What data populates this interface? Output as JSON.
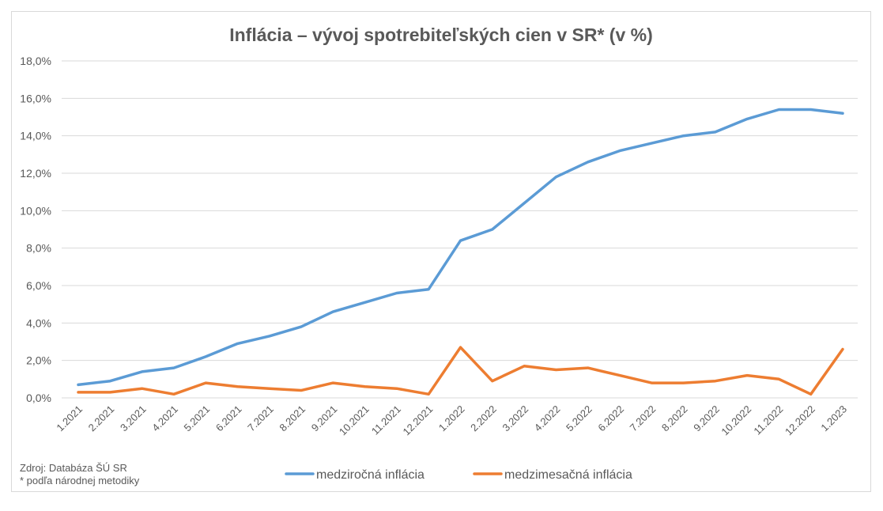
{
  "chart_data": {
    "type": "line",
    "title": "Inflácia –  vývoj spotrebiteľských cien v SR* (v %)",
    "categories": [
      "1.2021",
      "2.2021",
      "3.2021",
      "4.2021",
      "5.2021",
      "6.2021",
      "7.2021",
      "8.2021",
      "9.2021",
      "10.2021",
      "11.2021",
      "12.2021",
      "1.2022",
      "2.2022",
      "3.2022",
      "4.2022",
      "5.2022",
      "6.2022",
      "7.2022",
      "8.2022",
      "9.2022",
      "10.2022",
      "11.2022",
      "12.2022",
      "1.2023"
    ],
    "series": [
      {
        "name": "medziročná inflácia",
        "color": "#5b9bd5",
        "values": [
          0.7,
          0.9,
          1.4,
          1.6,
          2.2,
          2.9,
          3.3,
          3.8,
          4.6,
          5.1,
          5.6,
          5.8,
          8.4,
          9.0,
          10.4,
          11.8,
          12.6,
          13.2,
          13.6,
          14.0,
          14.2,
          14.9,
          15.4,
          15.4,
          15.2
        ]
      },
      {
        "name": "medzimesačná inflácia",
        "color": "#ed7d31",
        "values": [
          0.3,
          0.3,
          0.5,
          0.2,
          0.8,
          0.6,
          0.5,
          0.4,
          0.8,
          0.6,
          0.5,
          0.2,
          2.7,
          0.9,
          1.7,
          1.5,
          1.6,
          1.2,
          0.8,
          0.8,
          0.9,
          1.2,
          1.0,
          0.2,
          2.6
        ]
      }
    ],
    "ylim": [
      0,
      18
    ],
    "yticks": [
      "0,0%",
      "2,0%",
      "4,0%",
      "6,0%",
      "8,0%",
      "10,0%",
      "12,0%",
      "14,0%",
      "16,0%",
      "18,0%"
    ],
    "grid": true,
    "legend": "bottom"
  },
  "notes": {
    "source": "Zdroj: Databáza ŠÚ SR",
    "footnote": "* podľa národnej metodiky"
  }
}
